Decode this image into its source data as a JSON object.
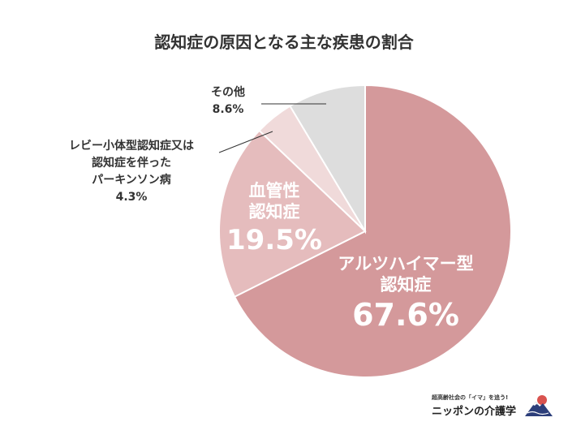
{
  "title": "認知症の原因となる主な疾患の割合",
  "chart_data": {
    "type": "pie",
    "title": "認知症の原因となる主な疾患の割合",
    "start": "top, clockwise",
    "slices": [
      {
        "label": "アルツハイマー型認知症",
        "label_lines": [
          "アルツハイマー型",
          "認知症"
        ],
        "pct_text": "67.6%",
        "value": 67.6,
        "color": "#d4999b"
      },
      {
        "label": "血管性認知症",
        "label_lines": [
          "血管性",
          "認知症"
        ],
        "pct_text": "19.5%",
        "value": 19.5,
        "color": "#e5bcbd"
      },
      {
        "label": "レビー小体型認知症又は認知症を伴ったパーキンソン病",
        "label_lines": [
          "レビー小体型認知症又は",
          "認知症を伴った",
          "パーキンソン病"
        ],
        "pct_text": "4.3%",
        "value": 4.3,
        "color": "#f0dada"
      },
      {
        "label": "その他",
        "label_lines": [
          "その他"
        ],
        "pct_text": "8.6%",
        "value": 8.6,
        "color": "#dddddd"
      }
    ]
  },
  "logo": {
    "tagline": "超高齢社会の「イマ」を追う!",
    "brand": "ニッポンの介護学"
  }
}
